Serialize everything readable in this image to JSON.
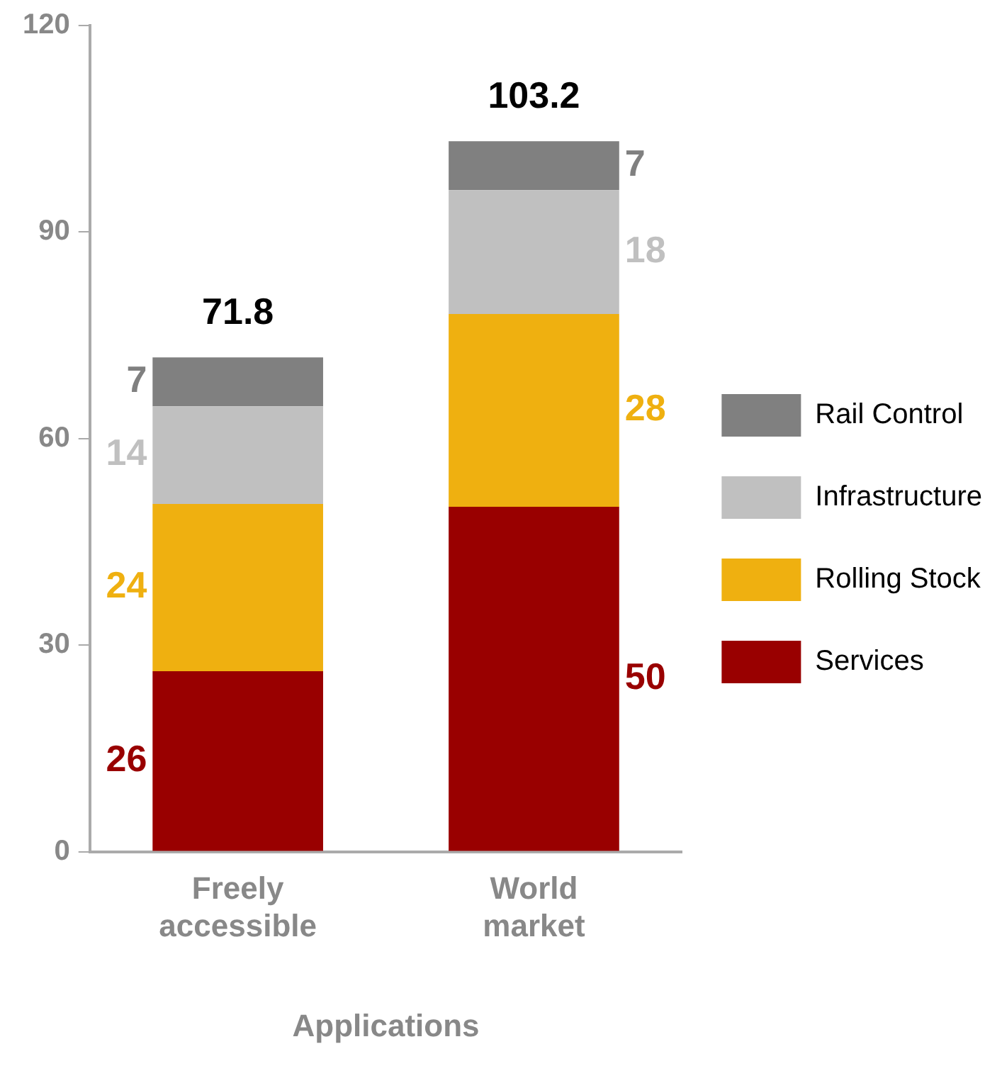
{
  "chart_data": {
    "type": "bar",
    "stacked": true,
    "xlabel": "Applications",
    "categories": [
      "Freely accessible",
      "World market"
    ],
    "series": [
      {
        "name": "Services",
        "color": "#990000",
        "values": [
          26.2,
          50.1
        ],
        "value_labels": [
          "26",
          "50"
        ]
      },
      {
        "name": "Rolling Stock",
        "color": "#efb010",
        "values": [
          24.3,
          28
        ],
        "value_labels": [
          "24",
          "28"
        ]
      },
      {
        "name": "Infrastructure",
        "color": "#c0c0c0",
        "values": [
          14.2,
          18
        ],
        "value_labels": [
          "14",
          "18"
        ]
      },
      {
        "name": "Rail Control",
        "color": "#808080",
        "values": [
          7.1,
          7.1
        ],
        "value_labels": [
          "7",
          "7"
        ]
      }
    ],
    "totals": [
      "71.8",
      "103.2"
    ],
    "ylim": [
      0,
      120
    ],
    "yticks": [
      0,
      30,
      60,
      90,
      120
    ],
    "grid": false,
    "legend": "right"
  }
}
